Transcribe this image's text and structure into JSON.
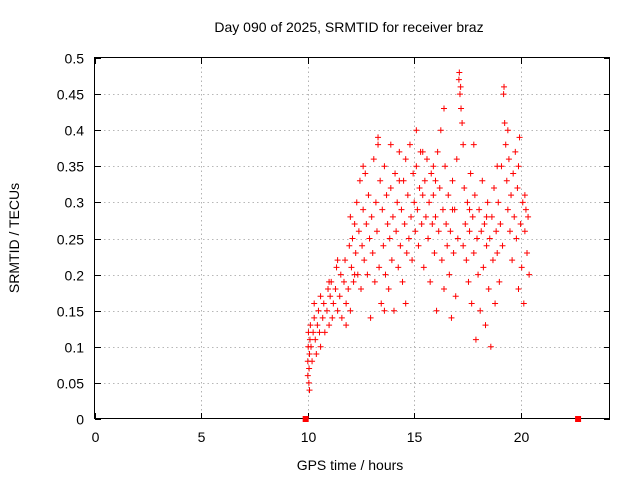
{
  "chart_data": {
    "type": "scatter",
    "title": "Day 090 of 2025, SRMTID for receiver braz",
    "xlabel": "GPS time / hours",
    "ylabel": "SRMTID / TECUs",
    "xlim": [
      0,
      24.2
    ],
    "ylim": [
      0,
      0.5
    ],
    "xticks": [
      0,
      5,
      10,
      15,
      20
    ],
    "xtick_labels": [
      "0",
      "5",
      "10",
      "15",
      "20"
    ],
    "yticks": [
      0,
      0.05,
      0.1,
      0.15,
      0.2,
      0.25,
      0.3,
      0.35,
      0.4,
      0.45,
      0.5
    ],
    "ytick_labels": [
      "0",
      "0.05",
      "0.1",
      "0.15",
      "0.2",
      "0.25",
      "0.3",
      "0.35",
      "0.4",
      "0.45",
      "0.5"
    ],
    "grid": true,
    "marker": "plus",
    "color": "#ff0000",
    "outline_points": [
      [
        9.9,
        0.0
      ],
      [
        22.7,
        0.0
      ]
    ],
    "series": [
      {
        "name": "SRMTID",
        "points": [
          [
            10.0,
            0.06
          ],
          [
            10.0,
            0.08
          ],
          [
            10.02,
            0.1
          ],
          [
            10.03,
            0.12
          ],
          [
            10.05,
            0.05
          ],
          [
            10.06,
            0.07
          ],
          [
            10.08,
            0.09
          ],
          [
            10.1,
            0.11
          ],
          [
            10.12,
            0.13
          ],
          [
            10.15,
            0.1
          ],
          [
            10.2,
            0.08
          ],
          [
            10.25,
            0.12
          ],
          [
            10.3,
            0.14
          ],
          [
            10.35,
            0.11
          ],
          [
            10.4,
            0.09
          ],
          [
            10.45,
            0.13
          ],
          [
            10.5,
            0.15
          ],
          [
            10.55,
            0.12
          ],
          [
            10.6,
            0.1
          ],
          [
            10.7,
            0.14
          ],
          [
            10.75,
            0.16
          ],
          [
            10.8,
            0.12
          ],
          [
            10.9,
            0.15
          ],
          [
            10.95,
            0.18
          ],
          [
            11.0,
            0.13
          ],
          [
            11.05,
            0.17
          ],
          [
            11.1,
            0.19
          ],
          [
            11.15,
            0.14
          ],
          [
            11.2,
            0.16
          ],
          [
            11.3,
            0.18
          ],
          [
            11.35,
            0.21
          ],
          [
            11.4,
            0.15
          ],
          [
            11.5,
            0.17
          ],
          [
            11.55,
            0.2
          ],
          [
            11.6,
            0.14
          ],
          [
            11.7,
            0.19
          ],
          [
            11.75,
            0.22
          ],
          [
            11.8,
            0.16
          ],
          [
            11.9,
            0.18
          ],
          [
            11.95,
            0.24
          ],
          [
            12.0,
            0.15
          ],
          [
            12.05,
            0.21
          ],
          [
            12.1,
            0.25
          ],
          [
            12.15,
            0.19
          ],
          [
            12.2,
            0.27
          ],
          [
            12.25,
            0.23
          ],
          [
            12.3,
            0.3
          ],
          [
            12.35,
            0.2
          ],
          [
            12.4,
            0.26
          ],
          [
            12.45,
            0.33
          ],
          [
            12.5,
            0.18
          ],
          [
            12.55,
            0.24
          ],
          [
            12.6,
            0.29
          ],
          [
            12.65,
            0.22
          ],
          [
            12.7,
            0.34
          ],
          [
            12.75,
            0.27
          ],
          [
            12.8,
            0.2
          ],
          [
            12.85,
            0.31
          ],
          [
            12.9,
            0.25
          ],
          [
            12.95,
            0.14
          ],
          [
            13.0,
            0.28
          ],
          [
            13.05,
            0.23
          ],
          [
            13.1,
            0.36
          ],
          [
            13.15,
            0.19
          ],
          [
            13.2,
            0.3
          ],
          [
            13.25,
            0.26
          ],
          [
            13.3,
            0.39
          ],
          [
            13.35,
            0.21
          ],
          [
            13.4,
            0.33
          ],
          [
            13.45,
            0.16
          ],
          [
            13.5,
            0.29
          ],
          [
            13.55,
            0.24
          ],
          [
            13.6,
            0.35
          ],
          [
            13.65,
            0.2
          ],
          [
            13.7,
            0.31
          ],
          [
            13.75,
            0.27
          ],
          [
            13.8,
            0.18
          ],
          [
            13.85,
            0.25
          ],
          [
            13.9,
            0.32
          ],
          [
            13.95,
            0.22
          ],
          [
            14.0,
            0.28
          ],
          [
            14.05,
            0.15
          ],
          [
            14.1,
            0.34
          ],
          [
            14.15,
            0.26
          ],
          [
            14.2,
            0.3
          ],
          [
            14.25,
            0.21
          ],
          [
            14.3,
            0.37
          ],
          [
            14.35,
            0.24
          ],
          [
            14.4,
            0.29
          ],
          [
            14.45,
            0.19
          ],
          [
            14.5,
            0.33
          ],
          [
            14.55,
            0.27
          ],
          [
            14.6,
            0.36
          ],
          [
            14.65,
            0.23
          ],
          [
            14.7,
            0.31
          ],
          [
            14.75,
            0.25
          ],
          [
            14.8,
            0.38
          ],
          [
            14.85,
            0.28
          ],
          [
            14.9,
            0.22
          ],
          [
            14.95,
            0.34
          ],
          [
            15.0,
            0.3
          ],
          [
            15.05,
            0.26
          ],
          [
            15.1,
            0.35
          ],
          [
            15.15,
            0.29
          ],
          [
            15.2,
            0.24
          ],
          [
            15.25,
            0.32
          ],
          [
            15.3,
            0.37
          ],
          [
            15.35,
            0.27
          ],
          [
            15.4,
            0.31
          ],
          [
            15.45,
            0.21
          ],
          [
            15.5,
            0.33
          ],
          [
            15.55,
            0.28
          ],
          [
            15.6,
            0.36
          ],
          [
            15.65,
            0.25
          ],
          [
            15.7,
            0.3
          ],
          [
            15.75,
            0.19
          ],
          [
            15.8,
            0.34
          ],
          [
            15.85,
            0.27
          ],
          [
            15.9,
            0.31
          ],
          [
            15.95,
            0.23
          ],
          [
            16.0,
            0.28
          ],
          [
            16.05,
            0.15
          ],
          [
            16.1,
            0.37
          ],
          [
            16.15,
            0.26
          ],
          [
            16.2,
            0.32
          ],
          [
            16.25,
            0.4
          ],
          [
            16.3,
            0.22
          ],
          [
            16.35,
            0.29
          ],
          [
            16.4,
            0.18
          ],
          [
            16.45,
            0.35
          ],
          [
            16.5,
            0.27
          ],
          [
            16.55,
            0.24
          ],
          [
            16.6,
            0.31
          ],
          [
            16.65,
            0.2
          ],
          [
            16.7,
            0.26
          ],
          [
            16.75,
            0.14
          ],
          [
            16.8,
            0.33
          ],
          [
            16.85,
            0.23
          ],
          [
            16.9,
            0.29
          ],
          [
            16.95,
            0.17
          ],
          [
            17.0,
            0.36
          ],
          [
            17.05,
            0.25
          ],
          [
            17.1,
            0.47
          ],
          [
            17.12,
            0.48
          ],
          [
            17.15,
            0.45
          ],
          [
            17.18,
            0.46
          ],
          [
            17.2,
            0.43
          ],
          [
            17.25,
            0.41
          ],
          [
            17.3,
            0.38
          ],
          [
            17.35,
            0.32
          ],
          [
            17.4,
            0.27
          ],
          [
            17.45,
            0.22
          ],
          [
            17.5,
            0.3
          ],
          [
            17.55,
            0.19
          ],
          [
            17.6,
            0.26
          ],
          [
            17.65,
            0.34
          ],
          [
            17.7,
            0.16
          ],
          [
            17.75,
            0.28
          ],
          [
            17.8,
            0.23
          ],
          [
            17.85,
            0.31
          ],
          [
            17.9,
            0.11
          ],
          [
            17.95,
            0.25
          ],
          [
            18.0,
            0.2
          ],
          [
            18.05,
            0.29
          ],
          [
            18.1,
            0.15
          ],
          [
            18.15,
            0.26
          ],
          [
            18.2,
            0.33
          ],
          [
            18.25,
            0.21
          ],
          [
            18.3,
            0.27
          ],
          [
            18.35,
            0.13
          ],
          [
            18.4,
            0.24
          ],
          [
            18.45,
            0.3
          ],
          [
            18.5,
            0.18
          ],
          [
            18.55,
            0.25
          ],
          [
            18.6,
            0.1
          ],
          [
            18.65,
            0.28
          ],
          [
            18.7,
            0.22
          ],
          [
            18.75,
            0.32
          ],
          [
            18.8,
            0.16
          ],
          [
            18.85,
            0.26
          ],
          [
            18.9,
            0.23
          ],
          [
            18.95,
            0.3
          ],
          [
            19.0,
            0.19
          ],
          [
            19.05,
            0.27
          ],
          [
            19.1,
            0.35
          ],
          [
            19.15,
            0.24
          ],
          [
            19.2,
            0.45
          ],
          [
            19.22,
            0.46
          ],
          [
            19.25,
            0.41
          ],
          [
            19.3,
            0.38
          ],
          [
            19.35,
            0.33
          ],
          [
            19.4,
            0.29
          ],
          [
            19.45,
            0.36
          ],
          [
            19.5,
            0.26
          ],
          [
            19.55,
            0.31
          ],
          [
            19.6,
            0.22
          ],
          [
            19.65,
            0.34
          ],
          [
            19.7,
            0.28
          ],
          [
            19.75,
            0.37
          ],
          [
            19.8,
            0.25
          ],
          [
            19.85,
            0.32
          ],
          [
            19.9,
            0.18
          ],
          [
            19.95,
            0.39
          ],
          [
            20.0,
            0.27
          ],
          [
            20.05,
            0.21
          ],
          [
            20.1,
            0.3
          ],
          [
            20.15,
            0.16
          ],
          [
            20.2,
            0.26
          ],
          [
            20.25,
            0.29
          ],
          [
            20.3,
            0.23
          ],
          [
            20.35,
            0.28
          ],
          [
            20.4,
            0.2
          ],
          [
            10.08,
            0.04
          ],
          [
            10.3,
            0.16
          ],
          [
            10.6,
            0.17
          ],
          [
            11.0,
            0.19
          ],
          [
            11.4,
            0.22
          ],
          [
            11.8,
            0.13
          ],
          [
            12.2,
            0.2
          ],
          [
            12.6,
            0.35
          ],
          [
            13.3,
            0.38
          ],
          [
            13.9,
            0.38
          ],
          [
            14.6,
            0.16
          ],
          [
            15.4,
            0.37
          ],
          [
            15.9,
            0.35
          ],
          [
            16.4,
            0.43
          ],
          [
            16.8,
            0.29
          ],
          [
            17.3,
            0.24
          ],
          [
            17.8,
            0.38
          ],
          [
            18.4,
            0.28
          ],
          [
            18.9,
            0.35
          ],
          [
            19.4,
            0.4
          ],
          [
            19.9,
            0.35
          ],
          [
            20.2,
            0.31
          ],
          [
            12.0,
            0.28
          ],
          [
            13.6,
            0.15
          ],
          [
            14.3,
            0.33
          ],
          [
            15.1,
            0.4
          ],
          [
            16.0,
            0.33
          ],
          [
            17.6,
            0.29
          ]
        ]
      }
    ]
  }
}
